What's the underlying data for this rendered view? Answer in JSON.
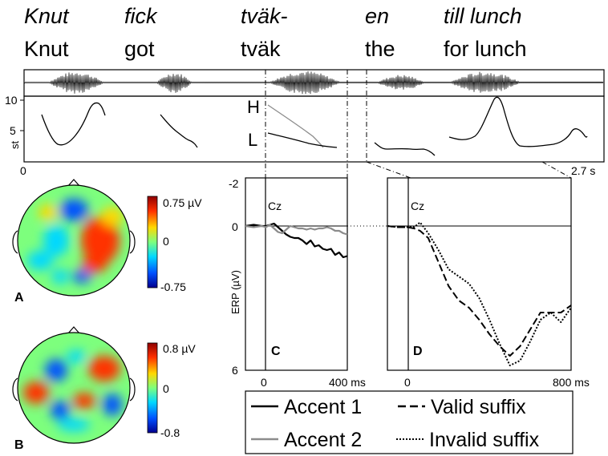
{
  "words": [
    {
      "sw": "Knut",
      "en": "Knut"
    },
    {
      "sw": "fick",
      "en": "got"
    },
    {
      "sw": "tväk-",
      "en": "tväk"
    },
    {
      "sw": "en",
      "en": "the"
    },
    {
      "sw": "till lunch",
      "en": "for lunch"
    }
  ],
  "f0": {
    "ylabel": "st",
    "yticks": [
      "10",
      "5"
    ],
    "x_start": "0",
    "x_end": "2.7 s",
    "H": "H",
    "L": "L"
  },
  "topomaps": [
    {
      "panel": "A",
      "max": "0.75 µV",
      "mid": "0",
      "min": "-0.75"
    },
    {
      "panel": "B",
      "max": "0.8 µV",
      "mid": "0",
      "min": "-0.8"
    }
  ],
  "erp": {
    "ylabel": "ERP (µV)",
    "yticks": [
      "-2",
      "0",
      "6"
    ],
    "channel": "Cz",
    "ylim": [
      -2,
      6
    ],
    "panels": [
      {
        "panel": "C",
        "xticks": [
          "0",
          "400 ms"
        ],
        "xlim": [
          -100,
          400
        ]
      },
      {
        "panel": "D",
        "xticks": [
          "0",
          "800 ms"
        ],
        "xlim": [
          -100,
          800
        ]
      }
    ]
  },
  "legend": {
    "accent1": "Accent 1",
    "accent2": "Accent 2",
    "valid": "Valid suffix",
    "invalid": "Invalid suffix"
  },
  "colors": {
    "accent1": "#000000",
    "accent2": "#8c8c8c",
    "colormap": [
      "#00008f",
      "#0050ff",
      "#00d8ff",
      "#7dff7d",
      "#ffd800",
      "#ff3000",
      "#8f0000"
    ]
  },
  "chart_data": [
    {
      "type": "line",
      "title": "",
      "xlabel": "",
      "ylabel": "ERP (µV)",
      "xlim": [
        -100,
        400
      ],
      "ylim": [
        -2,
        6
      ],
      "annotations": [
        "Cz",
        "C"
      ],
      "series": [
        {
          "name": "Accent 1",
          "x": [
            -100,
            -60,
            -20,
            0,
            20,
            40,
            60,
            80,
            100,
            120,
            140,
            160,
            180,
            200,
            220,
            240,
            260,
            280,
            300,
            320,
            340,
            360,
            380,
            400
          ],
          "y": [
            0,
            -0.05,
            0,
            0,
            -0.05,
            -0.1,
            0.05,
            0.2,
            0.35,
            0.45,
            0.5,
            0.5,
            0.6,
            0.75,
            0.6,
            0.85,
            0.8,
            0.95,
            1.0,
            0.95,
            1.2,
            1.1,
            1.3,
            1.25
          ]
        },
        {
          "name": "Accent 2",
          "x": [
            -100,
            -60,
            -20,
            0,
            20,
            40,
            60,
            80,
            100,
            120,
            140,
            160,
            180,
            200,
            220,
            240,
            260,
            280,
            300,
            320,
            340,
            360,
            380,
            400
          ],
          "y": [
            0,
            0.05,
            0,
            0.05,
            -0.05,
            0.1,
            0.25,
            0.3,
            0.15,
            0,
            0.05,
            0.1,
            0.1,
            0.15,
            0.1,
            0.15,
            0.1,
            0.1,
            0.05,
            0.1,
            0.2,
            0.2,
            0.3,
            0.35
          ]
        }
      ]
    },
    {
      "type": "line",
      "title": "",
      "xlabel": "",
      "ylabel": "",
      "xlim": [
        -100,
        800
      ],
      "ylim": [
        -2,
        6
      ],
      "annotations": [
        "Cz",
        "D"
      ],
      "series": [
        {
          "name": "Valid suffix",
          "x": [
            -100,
            -50,
            0,
            30,
            60,
            100,
            150,
            200,
            250,
            300,
            350,
            400,
            450,
            500,
            550,
            600,
            650,
            700,
            750,
            800
          ],
          "y": [
            0,
            0.05,
            0.05,
            0.1,
            0.2,
            0.5,
            1.5,
            2.5,
            3.1,
            3.4,
            3.9,
            4.5,
            5.0,
            5.4,
            5.0,
            4.3,
            3.6,
            3.6,
            3.6,
            3.3
          ]
        },
        {
          "name": "Invalid suffix",
          "x": [
            -100,
            -50,
            0,
            30,
            60,
            100,
            150,
            200,
            250,
            300,
            350,
            400,
            450,
            500,
            550,
            600,
            650,
            700,
            750,
            800
          ],
          "y": [
            0,
            0.05,
            0.05,
            0.05,
            -0.15,
            0.3,
            1.0,
            1.8,
            2.1,
            2.4,
            3.0,
            3.9,
            4.9,
            5.8,
            5.6,
            4.8,
            3.9,
            3.6,
            4.0,
            3.4
          ]
        }
      ]
    }
  ]
}
